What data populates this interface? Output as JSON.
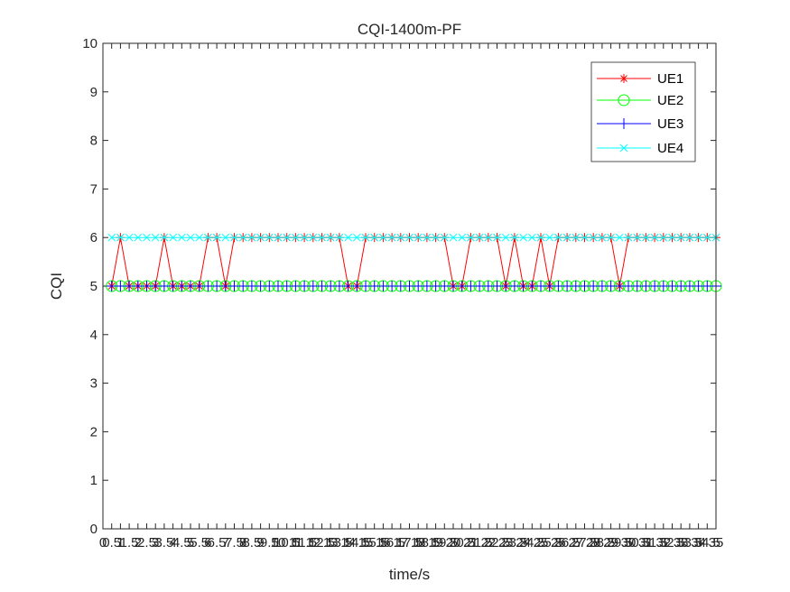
{
  "chart_data": {
    "type": "line",
    "title": "CQI-1400m-PF",
    "xlabel": "time/s",
    "ylabel": "CQI",
    "xlim": [
      0,
      35
    ],
    "ylim": [
      0,
      10
    ],
    "x": [
      0.5,
      1,
      1.5,
      2,
      2.5,
      3,
      3.5,
      4,
      4.5,
      5,
      5.5,
      6,
      6.5,
      7,
      7.5,
      8,
      8.5,
      9,
      9.5,
      10,
      10.5,
      11,
      11.5,
      12,
      12.5,
      13,
      13.5,
      14,
      14.5,
      15,
      15.5,
      16,
      16.5,
      17,
      17.5,
      18,
      18.5,
      19,
      19.5,
      20,
      20.5,
      21,
      21.5,
      22,
      22.5,
      23,
      23.5,
      24,
      24.5,
      25,
      25.5,
      26,
      26.5,
      27,
      27.5,
      28,
      28.5,
      29,
      29.5,
      30,
      30.5,
      31,
      31.5,
      32,
      32.5,
      33,
      33.5,
      34,
      34.5,
      35
    ],
    "xtick_labels": [
      "0",
      "0.5",
      "1",
      "1.5",
      "2",
      "2.5",
      "3",
      "3.5",
      "4",
      "4.5",
      "5",
      "5.5",
      "6",
      "6.5",
      "7",
      "7.5",
      "8",
      "8.5",
      "9",
      "9.5",
      "10",
      "10.5",
      "11",
      "11.5",
      "12",
      "12.5",
      "13",
      "13.5",
      "14",
      "14.5",
      "15",
      "15.5",
      "16",
      "16.5",
      "17",
      "17.5",
      "18",
      "18.5",
      "19",
      "19.5",
      "20",
      "20.5",
      "21",
      "21.5",
      "22",
      "22.5",
      "23",
      "23.5",
      "24",
      "24.5",
      "25",
      "25.5",
      "26",
      "26.5",
      "27",
      "27.5",
      "28",
      "28.5",
      "29",
      "29.5",
      "30",
      "30.5",
      "31",
      "31.5",
      "32",
      "32.5",
      "33",
      "33.5",
      "34",
      "34.5",
      "35"
    ],
    "ytick_labels": [
      "0",
      "1",
      "2",
      "3",
      "4",
      "5",
      "6",
      "7",
      "8",
      "9",
      "10"
    ],
    "legend_position": "top-right",
    "grid": false,
    "series": [
      {
        "name": "UE1",
        "color": "#ff0000",
        "marker": "asterisk",
        "values": [
          5,
          6,
          5,
          5,
          5,
          5,
          6,
          5,
          5,
          5,
          5,
          6,
          6,
          5,
          6,
          6,
          6,
          6,
          6,
          6,
          6,
          6,
          6,
          6,
          6,
          6,
          6,
          5,
          5,
          6,
          6,
          6,
          6,
          6,
          6,
          6,
          6,
          6,
          6,
          5,
          5,
          6,
          6,
          6,
          6,
          5,
          6,
          5,
          5,
          6,
          5,
          6,
          6,
          6,
          6,
          6,
          6,
          6,
          5,
          6,
          6,
          6,
          6,
          6,
          6,
          6,
          6,
          6,
          6,
          6
        ]
      },
      {
        "name": "UE2",
        "color": "#00ff00",
        "marker": "circle",
        "values": [
          5,
          5,
          5,
          5,
          5,
          5,
          5,
          5,
          5,
          5,
          5,
          5,
          5,
          5,
          5,
          5,
          5,
          5,
          5,
          5,
          5,
          5,
          5,
          5,
          5,
          5,
          5,
          5,
          5,
          5,
          5,
          5,
          5,
          5,
          5,
          5,
          5,
          5,
          5,
          5,
          5,
          5,
          5,
          5,
          5,
          5,
          5,
          5,
          5,
          5,
          5,
          5,
          5,
          5,
          5,
          5,
          5,
          5,
          5,
          5,
          5,
          5,
          5,
          5,
          5,
          5,
          5,
          5,
          5,
          5
        ]
      },
      {
        "name": "UE3",
        "color": "#0000ff",
        "marker": "plus",
        "values": [
          5,
          5,
          5,
          5,
          5,
          5,
          5,
          5,
          5,
          5,
          5,
          5,
          5,
          5,
          5,
          5,
          5,
          5,
          5,
          5,
          5,
          5,
          5,
          5,
          5,
          5,
          5,
          5,
          5,
          5,
          5,
          5,
          5,
          5,
          5,
          5,
          5,
          5,
          5,
          5,
          5,
          5,
          5,
          5,
          5,
          5,
          5,
          5,
          5,
          5,
          5,
          5,
          5,
          5,
          5,
          5,
          5,
          5,
          5,
          5,
          5,
          5,
          5,
          5,
          5,
          5,
          5,
          5,
          5,
          5
        ]
      },
      {
        "name": "UE4",
        "color": "#00ffff",
        "marker": "cross",
        "values": [
          6,
          6,
          6,
          6,
          6,
          6,
          6,
          6,
          6,
          6,
          6,
          6,
          6,
          6,
          6,
          6,
          6,
          6,
          6,
          6,
          6,
          6,
          6,
          6,
          6,
          6,
          6,
          6,
          6,
          6,
          6,
          6,
          6,
          6,
          6,
          6,
          6,
          6,
          6,
          6,
          6,
          6,
          6,
          6,
          6,
          6,
          6,
          6,
          6,
          6,
          6,
          6,
          6,
          6,
          6,
          6,
          6,
          6,
          6,
          6,
          6,
          6,
          6,
          6,
          6,
          6,
          6,
          6,
          6,
          6
        ]
      }
    ]
  }
}
